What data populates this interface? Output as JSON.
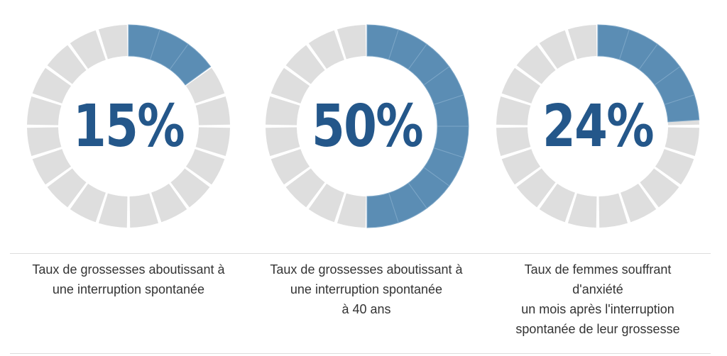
{
  "colors": {
    "filled": "#5b8db4",
    "empty": "#dedede",
    "text": "#24578a",
    "caption": "#333333"
  },
  "chart_data": [
    {
      "type": "donut",
      "value": 15,
      "label": "15%",
      "caption_lines": [
        "Taux de grossesses aboutissant à",
        "une interruption spontanée"
      ]
    },
    {
      "type": "donut",
      "value": 50,
      "label": "50%",
      "caption_lines": [
        "Taux de grossesses aboutissant à",
        "une interruption spontanée",
        "à 40 ans"
      ]
    },
    {
      "type": "donut",
      "value": 24,
      "label": "24%",
      "caption_lines": [
        "Taux de femmes souffrant",
        "d'anxiété",
        "un mois après l'interruption",
        "spontanée de leur grossesse"
      ]
    }
  ]
}
